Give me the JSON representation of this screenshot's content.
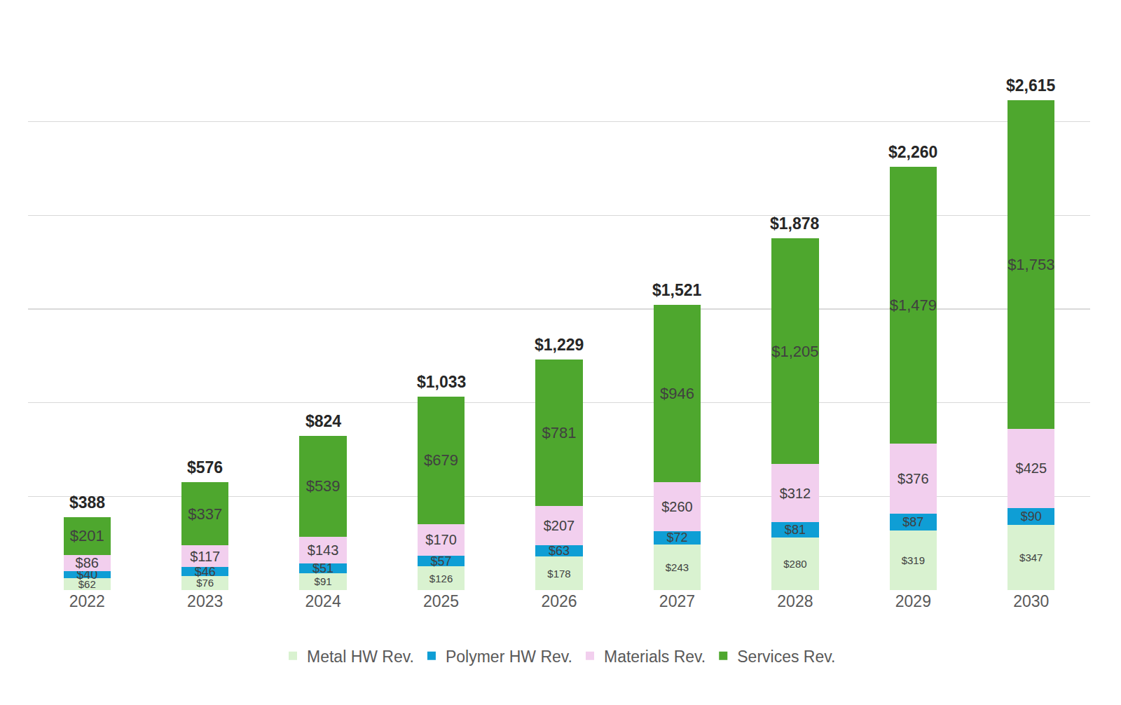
{
  "chart_data": {
    "type": "bar",
    "stacked": true,
    "data_labels": true,
    "grid": true,
    "legend": "bottom",
    "tick_labels": "x",
    "categories": [
      "2022",
      "2023",
      "2024",
      "2025",
      "2026",
      "2027",
      "2028",
      "2029",
      "2030"
    ],
    "ylim": [
      0,
      3000
    ],
    "yticks": [
      0,
      500,
      1000,
      1500,
      2000,
      2500,
      3000
    ],
    "series": [
      {
        "name": "Metal HW Rev.",
        "color": "#d9f2d0",
        "values": [
          62,
          76,
          91,
          126,
          178,
          243,
          280,
          319,
          347
        ],
        "value_labels": [
          "$62",
          "$76",
          "$91",
          "$126",
          "$178",
          "$243",
          "$280",
          "$319",
          "$347"
        ]
      },
      {
        "name": "Polymer HW Rev.",
        "color": "#0f9ed5",
        "values": [
          40,
          46,
          51,
          57,
          63,
          72,
          81,
          87,
          90
        ],
        "value_labels": [
          "$40",
          "$46",
          "$51",
          "$57",
          "$63",
          "$72",
          "$81",
          "$87",
          "$90"
        ]
      },
      {
        "name": "Materials Rev.",
        "color": "#f2cfee",
        "values": [
          86,
          117,
          143,
          170,
          207,
          260,
          312,
          376,
          425
        ],
        "value_labels": [
          "$86",
          "$117",
          "$143",
          "$170",
          "$207",
          "$260",
          "$312",
          "$376",
          "$425"
        ]
      },
      {
        "name": "Services Rev.",
        "color": "#4ea72e",
        "values": [
          201,
          337,
          539,
          679,
          781,
          946,
          1205,
          1479,
          1753
        ],
        "value_labels": [
          "$201",
          "$337",
          "$539",
          "$679",
          "$781",
          "$946",
          "$1,205",
          "$1,479",
          "$1,753"
        ]
      }
    ],
    "annotations": [
      {
        "category": "2022",
        "value": 388,
        "text": "$388"
      },
      {
        "category": "2023",
        "value": 576,
        "text": "$576"
      },
      {
        "category": "2024",
        "value": 824,
        "text": "$824"
      },
      {
        "category": "2025",
        "value": 1033,
        "text": "$1,033"
      },
      {
        "category": "2026",
        "value": 1229,
        "text": "$1,229"
      },
      {
        "category": "2027",
        "value": 1521,
        "text": "$1,521"
      },
      {
        "category": "2028",
        "value": 1878,
        "text": "$1,878"
      },
      {
        "category": "2029",
        "value": 2260,
        "text": "$2,260"
      },
      {
        "category": "2030",
        "value": 2615,
        "text": "$2,615"
      }
    ]
  }
}
